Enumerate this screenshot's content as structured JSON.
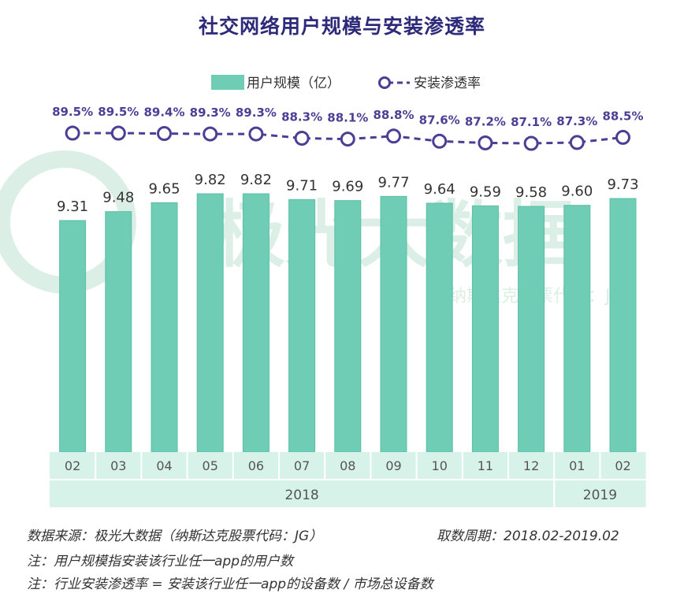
{
  "colors": {
    "title": "#2e2a7a",
    "bar": "#6fcdb6",
    "bar_stroke": "#5bbfa6",
    "line": "#4b3f95",
    "axis_fill": "#d7f2e8",
    "axis_text": "#555555",
    "watermark": "#dcefe6"
  },
  "watermark": {
    "brand": "极光大数据",
    "sub": "纳斯达克股票代码：JG"
  },
  "chart_data": {
    "type": "bar",
    "title": "社交网络用户规模与安装渗透率",
    "categories": [
      "02",
      "03",
      "04",
      "05",
      "06",
      "07",
      "08",
      "09",
      "10",
      "11",
      "12",
      "01",
      "02"
    ],
    "year_groups": [
      {
        "label": "2018",
        "count": 11
      },
      {
        "label": "2019",
        "count": 2
      }
    ],
    "series": [
      {
        "name": "用户规模（亿）",
        "type": "bar",
        "values": [
          9.31,
          9.48,
          9.65,
          9.82,
          9.82,
          9.71,
          9.69,
          9.77,
          9.64,
          9.59,
          9.58,
          9.6,
          9.73
        ],
        "labels": [
          "9.31",
          "9.48",
          "9.65",
          "9.82",
          "9.82",
          "9.71",
          "9.69",
          "9.77",
          "9.64",
          "9.59",
          "9.58",
          "9.60",
          "9.73"
        ]
      },
      {
        "name": "安装渗透率",
        "type": "line",
        "values": [
          89.5,
          89.5,
          89.4,
          89.3,
          89.3,
          88.3,
          88.1,
          88.8,
          87.6,
          87.2,
          87.1,
          87.3,
          88.5
        ],
        "labels": [
          "89.5%",
          "89.5%",
          "89.4%",
          "89.3%",
          "89.3%",
          "88.3%",
          "88.1%",
          "88.8%",
          "87.6%",
          "87.2%",
          "87.1%",
          "87.3%",
          "88.5%"
        ]
      }
    ],
    "legend_position": "top-center"
  },
  "footer": {
    "source": "数据来源：极光大数据（纳斯达克股票代码：JG）",
    "period": "取数周期：2018.02-2019.02",
    "note1": "注：用户规模指安装该行业任一app的用户数",
    "note2": "注：行业安装渗透率 = 安装该行业任一app的设备数 / 市场总设备数"
  }
}
